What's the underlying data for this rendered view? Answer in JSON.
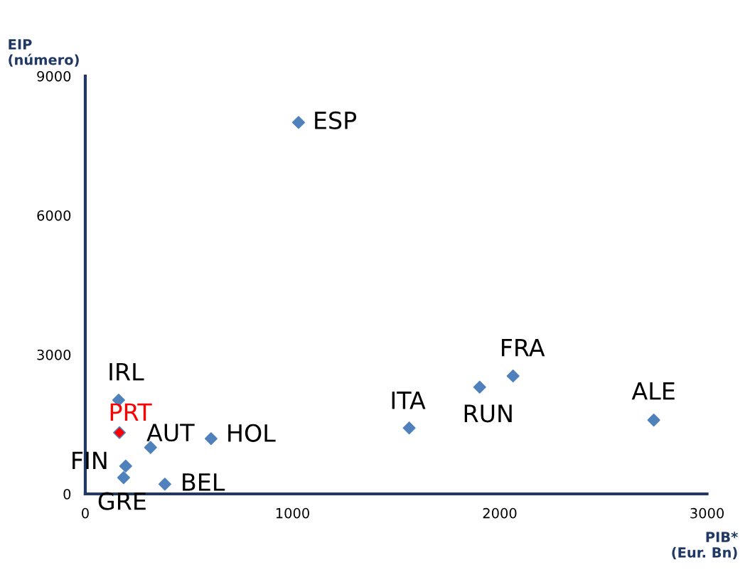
{
  "chart_data": {
    "type": "scatter",
    "xlabel": "PIB*\n(Eur. Bn)",
    "ylabel": "EIP\n(número)",
    "xlim": [
      0,
      3000
    ],
    "xticks": [
      0,
      1000,
      2000,
      3000
    ],
    "ylim": [
      0,
      9000
    ],
    "yticks": [
      0,
      3000,
      6000,
      9000
    ],
    "grid": false,
    "legend": false,
    "marker": "diamond",
    "series": [
      {
        "name": "ESP",
        "color": "#4f81bd",
        "x": [
          1029
        ],
        "values": [
          8000
        ]
      },
      {
        "name": "FRA",
        "color": "#4f81bd",
        "x": [
          2064
        ],
        "values": [
          2540
        ]
      },
      {
        "name": "RUN",
        "color": "#4f81bd",
        "x": [
          1903
        ],
        "values": [
          2300
        ]
      },
      {
        "name": "ALE",
        "color": "#4f81bd",
        "x": [
          2743
        ],
        "values": [
          1590
        ]
      },
      {
        "name": "ITA",
        "color": "#4f81bd",
        "x": [
          1563
        ],
        "values": [
          1420
        ]
      },
      {
        "name": "HOL",
        "color": "#4f81bd",
        "x": [
          607
        ],
        "values": [
          1190
        ]
      },
      {
        "name": "IRL",
        "color": "#4f81bd",
        "x": [
          161
        ],
        "values": [
          2020
        ]
      },
      {
        "name": "PRT",
        "color": "#ff0000",
        "x": [
          165
        ],
        "values": [
          1320
        ]
      },
      {
        "name": "AUT",
        "color": "#4f81bd",
        "x": [
          315
        ],
        "values": [
          1000
        ]
      },
      {
        "name": "FIN",
        "color": "#4f81bd",
        "x": [
          195
        ],
        "values": [
          600
        ]
      },
      {
        "name": "GRE",
        "color": "#4f81bd",
        "x": [
          185
        ],
        "values": [
          350
        ]
      },
      {
        "name": "BEL",
        "color": "#4f81bd",
        "x": [
          384
        ],
        "values": [
          210
        ]
      }
    ]
  }
}
